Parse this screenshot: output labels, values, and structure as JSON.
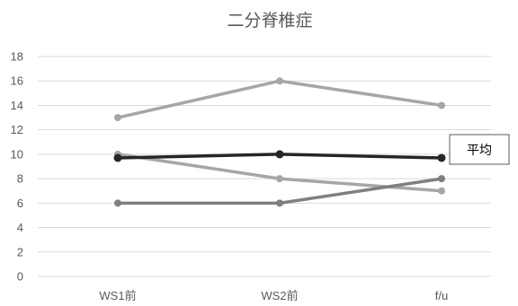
{
  "chart_data": {
    "type": "line",
    "title": "二分脊椎症",
    "categories": [
      "WS1前",
      "WS2前",
      "f/u"
    ],
    "ylim": [
      0,
      18
    ],
    "yticks": [
      0,
      2,
      4,
      6,
      8,
      10,
      12,
      14,
      16,
      18
    ],
    "grid": true,
    "series": [
      {
        "values": [
          13,
          16,
          14
        ],
        "color": "#a6a6a6"
      },
      {
        "values": [
          10,
          8,
          7
        ],
        "color": "#a6a6a6"
      },
      {
        "values": [
          6,
          6,
          8
        ],
        "color": "#7f7f7f"
      },
      {
        "name": "平均",
        "values": [
          9.7,
          10,
          9.7
        ],
        "color": "#262626"
      }
    ],
    "annotations": [
      {
        "text": "平均"
      }
    ]
  }
}
